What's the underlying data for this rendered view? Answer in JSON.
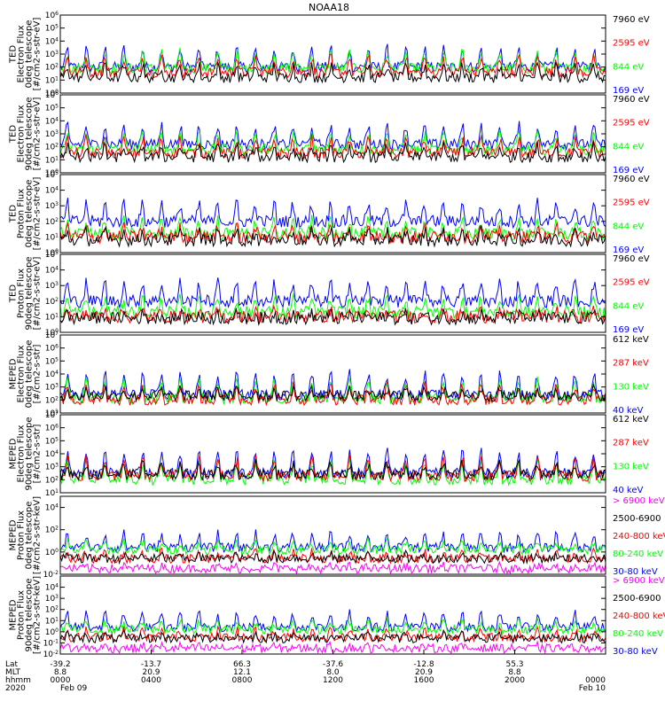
{
  "chart_data": {
    "type": "line",
    "title": "NOAA18",
    "footer": {
      "row_labels": [
        "Lat",
        "MLT",
        "hhmm",
        "2020"
      ],
      "columns": [
        {
          "tick": "-39.2",
          "lat": "-39.2",
          "mlt": "8.8",
          "hhmm": "0000",
          "date": "Feb 09"
        },
        {
          "tick": "-13.7",
          "lat": "-13.7",
          "mlt": "20.9",
          "hhmm": "0400",
          "date": ""
        },
        {
          "tick": "66.3",
          "lat": "66.3",
          "mlt": "12.1",
          "hhmm": "0800",
          "date": ""
        },
        {
          "tick": "-37.6",
          "lat": "-37.6",
          "mlt": "8.0",
          "hhmm": "1200",
          "date": ""
        },
        {
          "tick": "-12.8",
          "lat": "-12.8",
          "mlt": "20.9",
          "hhmm": "1600",
          "date": ""
        },
        {
          "tick": "55.3",
          "lat": "55.3",
          "mlt": "8.8",
          "hhmm": "2000",
          "date": ""
        },
        {
          "tick": "",
          "lat": "",
          "mlt": "",
          "hhmm": "0000",
          "date": "Feb 10"
        }
      ]
    },
    "panels": [
      {
        "ylabel": [
          "TED",
          "Electron Flux",
          "0deg telescope",
          "[#/cm2-s-str-eV]"
        ],
        "yscale": "log",
        "ylim_exp": [
          0,
          6
        ],
        "ytick_exps": [
          0,
          1,
          2,
          3,
          4,
          5,
          6
        ],
        "series": [
          {
            "name": "7960 eV",
            "color": "#000000",
            "level": 1.2,
            "spread": 2.0
          },
          {
            "name": "2595 eV",
            "color": "#ff0000",
            "level": 1.6,
            "spread": 2.6
          },
          {
            "name": "844 eV",
            "color": "#00ff00",
            "level": 1.9,
            "spread": 2.8
          },
          {
            "name": "169 eV",
            "color": "#0000ff",
            "level": 2.0,
            "spread": 3.2
          }
        ]
      },
      {
        "ylabel": [
          "TED",
          "Electron Flux",
          "90deg telescope",
          "[#/cm2-s-str-eV]"
        ],
        "yscale": "log",
        "ylim_exp": [
          0,
          6
        ],
        "ytick_exps": [
          0,
          1,
          2,
          3,
          4,
          5,
          6
        ],
        "series": [
          {
            "name": "7960 eV",
            "color": "#000000",
            "level": 1.2,
            "spread": 2.0
          },
          {
            "name": "2595 eV",
            "color": "#ff0000",
            "level": 1.5,
            "spread": 2.5
          },
          {
            "name": "844 eV",
            "color": "#00ff00",
            "level": 1.8,
            "spread": 2.8
          },
          {
            "name": "169 eV",
            "color": "#0000ff",
            "level": 2.2,
            "spread": 3.3
          }
        ]
      },
      {
        "ylabel": [
          "TED",
          "Proton Flux",
          "0deg telescope",
          "[#/cm2-s-str-eV]"
        ],
        "yscale": "log",
        "ylim_exp": [
          0,
          5
        ],
        "ytick_exps": [
          0,
          1,
          2,
          3,
          4,
          5
        ],
        "series": [
          {
            "name": "7960 eV",
            "color": "#000000",
            "level": 0.8,
            "spread": 1.2
          },
          {
            "name": "2595 eV",
            "color": "#ff0000",
            "level": 1.0,
            "spread": 1.4
          },
          {
            "name": "844 eV",
            "color": "#00ff00",
            "level": 1.2,
            "spread": 1.9
          },
          {
            "name": "169 eV",
            "color": "#0000ff",
            "level": 2.0,
            "spread": 2.6
          }
        ]
      },
      {
        "ylabel": [
          "TED",
          "Proton Flux",
          "90deg telescope",
          "[#/cm2-s-str-eV]"
        ],
        "yscale": "log",
        "ylim_exp": [
          0,
          5
        ],
        "ytick_exps": [
          0,
          1,
          2,
          3,
          4,
          5
        ],
        "series": [
          {
            "name": "7960 eV",
            "color": "#000000",
            "level": 0.9,
            "spread": 0.6
          },
          {
            "name": "2595 eV",
            "color": "#ff0000",
            "level": 1.0,
            "spread": 0.8
          },
          {
            "name": "844 eV",
            "color": "#00ff00",
            "level": 1.3,
            "spread": 2.0
          },
          {
            "name": "169 eV",
            "color": "#0000ff",
            "level": 2.0,
            "spread": 2.7
          }
        ]
      },
      {
        "ylabel": [
          "MEPED",
          "Electron Flux",
          "0deg telescope",
          "[#/cm2-s-str]"
        ],
        "yscale": "log",
        "ylim_exp": [
          1,
          7
        ],
        "ytick_exps": [
          1,
          2,
          3,
          4,
          5,
          6,
          7
        ],
        "series": [
          {
            "name": "612 keV",
            "color": "#000000",
            "level": 2.3,
            "spread": 1.2
          },
          {
            "name": "287 keV",
            "color": "#ff0000",
            "level": 2.0,
            "spread": 2.6
          },
          {
            "name": "130 keV",
            "color": "#00ff00",
            "level": 2.1,
            "spread": 3.0
          },
          {
            "name": "40 keV",
            "color": "#0000ff",
            "level": 2.4,
            "spread": 3.6
          }
        ]
      },
      {
        "ylabel": [
          "MEPED",
          "Electron Flux",
          "90deg telescope",
          "[#/cm2-s-str]"
        ],
        "yscale": "log",
        "ylim_exp": [
          1,
          7
        ],
        "ytick_exps": [
          1,
          2,
          3,
          4,
          5,
          6,
          7
        ],
        "series": [
          {
            "name": "612 keV",
            "color": "#000000",
            "level": 2.4,
            "spread": 1.8
          },
          {
            "name": "287 keV",
            "color": "#ff0000",
            "level": 2.3,
            "spread": 2.8
          },
          {
            "name": "130 keV",
            "color": "#00ff00",
            "level": 2.0,
            "spread": 3.0
          },
          {
            "name": "40 keV",
            "color": "#0000ff",
            "level": 2.5,
            "spread": 3.6
          }
        ]
      },
      {
        "ylabel": [
          "MEPED",
          "Proton Flux",
          "0deg telescope",
          "[#/cm2-s-str-keV]"
        ],
        "yscale": "log",
        "ylim_exp": [
          -2,
          5
        ],
        "ytick_exps": [
          -2,
          0,
          2,
          4
        ],
        "series": [
          {
            "name": "> 6900 keV",
            "color": "#ff00ff",
            "level": -1.5,
            "spread": 0.5
          },
          {
            "name": "2500-6900",
            "color": "#000000",
            "level": -0.6,
            "spread": 0.8
          },
          {
            "name": "240-800 keV",
            "color": "#ff0000",
            "level": -0.6,
            "spread": 1.4
          },
          {
            "name": "80-240 keV",
            "color": "#00ff00",
            "level": 0.2,
            "spread": 1.6
          },
          {
            "name": "30-80 keV",
            "color": "#0000ff",
            "level": 0.4,
            "spread": 2.8
          }
        ]
      },
      {
        "ylabel": [
          "MEPED",
          "Proton Flux",
          "90deg telescope",
          "[#/cm2-s-str-keV]"
        ],
        "yscale": "log",
        "ylim_exp": [
          -2,
          5
        ],
        "ytick_exps": [
          -2,
          -1,
          0,
          1,
          2,
          3,
          4
        ],
        "series": [
          {
            "name": "> 6900 keV",
            "color": "#ff00ff",
            "level": -1.5,
            "spread": 0.5
          },
          {
            "name": "2500-6900",
            "color": "#000000",
            "level": -0.6,
            "spread": 0.8
          },
          {
            "name": "240-800 keV",
            "color": "#ff0000",
            "level": -0.5,
            "spread": 1.4
          },
          {
            "name": "80-240 keV",
            "color": "#00ff00",
            "level": 0.2,
            "spread": 1.6
          },
          {
            "name": "30-80 keV",
            "color": "#0000ff",
            "level": 0.4,
            "spread": 2.8
          }
        ]
      }
    ]
  }
}
